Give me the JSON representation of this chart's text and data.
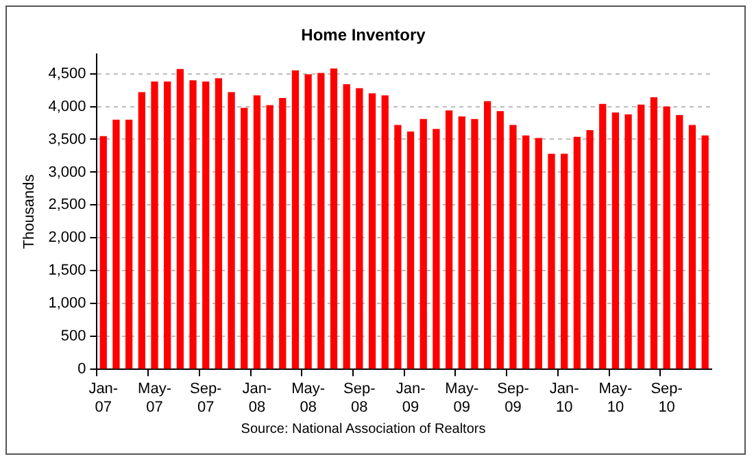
{
  "chart_data": {
    "type": "bar",
    "title": "Home Inventory",
    "ylabel": "Thousands",
    "categories": [
      "Jan-07",
      null,
      null,
      null,
      "May-07",
      null,
      null,
      null,
      "Sep-07",
      null,
      null,
      null,
      "Jan-08",
      null,
      null,
      null,
      "May-08",
      null,
      null,
      null,
      "Sep-08",
      null,
      null,
      null,
      "Jan-09",
      null,
      null,
      null,
      "May-09",
      null,
      null,
      null,
      "Sep-09",
      null,
      null,
      null,
      "Jan-10",
      null,
      null,
      null,
      "May-10",
      null,
      null,
      null,
      "Sep-10",
      null,
      null,
      null
    ],
    "values": [
      3550,
      3800,
      3800,
      4220,
      4380,
      4380,
      4570,
      4400,
      4380,
      4430,
      4220,
      3980,
      4170,
      4020,
      4130,
      4550,
      4490,
      4510,
      4580,
      4340,
      4280,
      4200,
      4170,
      3720,
      3620,
      3810,
      3660,
      3940,
      3850,
      3810,
      4080,
      3930,
      3720,
      3560,
      3520,
      3280,
      3280,
      3540,
      3640,
      4040,
      3910,
      3880,
      4030,
      4140,
      4000,
      3870,
      3720,
      3560
    ],
    "color": "#ff0000",
    "ylim": [
      0,
      4800
    ],
    "yticks": [
      0,
      500,
      {
        "value": 1000,
        "label": "1,000"
      },
      {
        "value": 1500,
        "label": "1,500"
      },
      {
        "value": 2000,
        "label": "2,000"
      },
      {
        "value": 2500,
        "label": "2,500"
      },
      {
        "value": 3000,
        "label": "3,000"
      },
      {
        "value": 3500,
        "label": "3,500"
      },
      {
        "value": 4000,
        "label": "4,000"
      },
      {
        "value": 4500,
        "label": "4,500"
      }
    ],
    "grid": "y",
    "annotations": [
      "Source: National Association of Realtors"
    ]
  }
}
